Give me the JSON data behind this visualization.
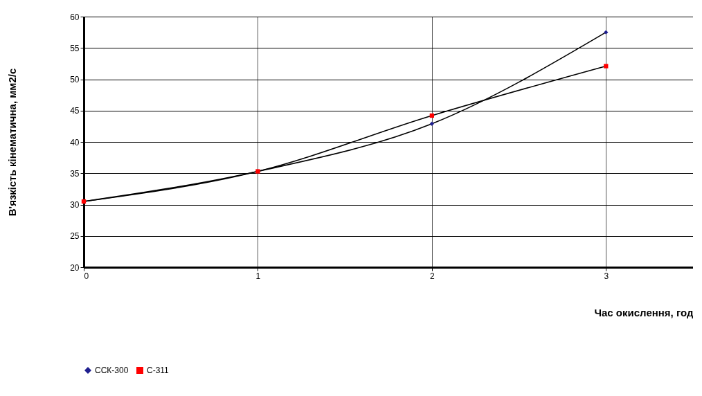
{
  "chart_data": {
    "type": "line",
    "xlabel": "Час окислення, год",
    "ylabel": "В'язкість кінематична, мм2/с",
    "x": [
      0,
      1,
      2,
      3
    ],
    "xlim": [
      0,
      3.5
    ],
    "xticks": [
      0,
      1,
      2,
      3
    ],
    "ylim": [
      20,
      60
    ],
    "yticks": [
      20,
      25,
      30,
      35,
      40,
      45,
      50,
      55,
      60
    ],
    "series": [
      {
        "name": "ССК-300",
        "color": "#1f1f8f",
        "marker": "diamond",
        "values": [
          30.5,
          35.3,
          42.9,
          57.5
        ]
      },
      {
        "name": "С-311",
        "color": "#ff0000",
        "marker": "square",
        "values": [
          30.5,
          35.3,
          44.2,
          52.1
        ]
      }
    ],
    "grid": true,
    "legend": "bottom",
    "line_style": "solid"
  }
}
